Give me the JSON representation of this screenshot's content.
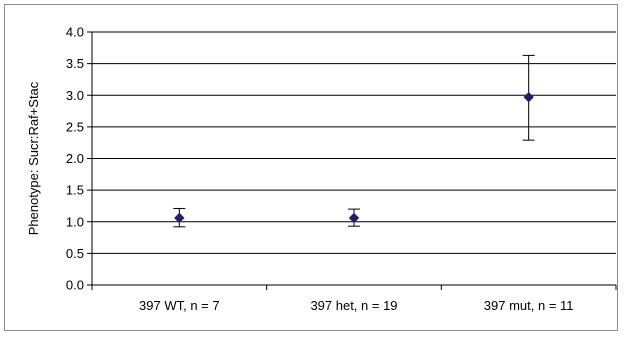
{
  "chart_data": {
    "type": "scatter",
    "title": "",
    "xlabel": "",
    "ylabel": "Phenotype: Sucr:Raf+Stac",
    "categories": [
      "397 WT, n = 7",
      "397 het, n = 19",
      "397 mut, n = 11"
    ],
    "series": [
      {
        "values": [
          1.06,
          1.06,
          2.97
        ],
        "error_low": [
          0.92,
          0.93,
          2.29
        ],
        "error_high": [
          1.21,
          1.2,
          3.63
        ]
      }
    ],
    "ylim": [
      0,
      4.0
    ],
    "yticks": [
      "0.0",
      "0.5",
      "1.0",
      "1.5",
      "2.0",
      "2.5",
      "3.0",
      "3.5",
      "4.0"
    ],
    "grid": true,
    "legend": "none",
    "colors": {
      "marker": "#1f1f6e",
      "gridline": "#000000",
      "errorbar": "#000000"
    }
  }
}
